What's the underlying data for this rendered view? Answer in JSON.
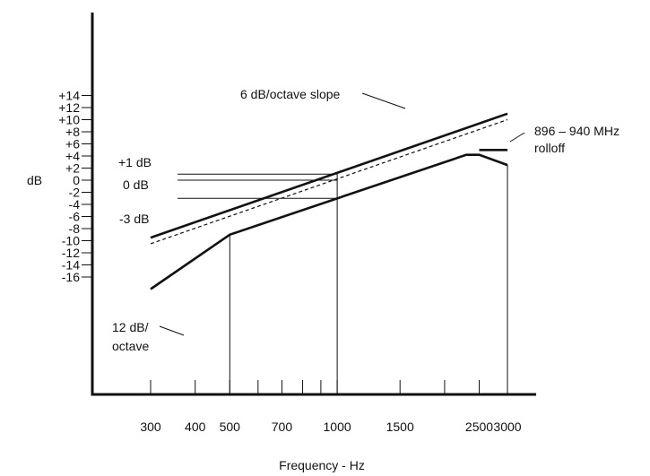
{
  "chart_data": {
    "type": "line",
    "title": "",
    "xlabel": "Frequency - Hz",
    "ylabel": "dB",
    "x_scale": "log",
    "xlim": [
      300,
      3000
    ],
    "ylim": [
      -18,
      14
    ],
    "grid": false,
    "y_ticks": [
      14,
      12,
      10,
      8,
      6,
      4,
      2,
      0,
      -2,
      -4,
      -6,
      -8,
      -10,
      -12,
      -14,
      -16
    ],
    "y_tick_labels": [
      "+14",
      "+12",
      "+10",
      "+8",
      "+6",
      "+4",
      "+2",
      "0",
      "-2",
      "-4",
      "-6",
      "-8",
      "-10",
      "-12",
      "-14",
      "-16"
    ],
    "x_labeled_ticks": [
      300,
      400,
      500,
      700,
      1000,
      1500,
      2500,
      3000
    ],
    "x_tick_labels": [
      "300",
      "400",
      "500",
      "700",
      "1000",
      "1500",
      "2500",
      "3000"
    ],
    "x_minor_ticks": [
      600,
      800,
      900,
      2000
    ],
    "series": [
      {
        "style": "solid",
        "x": [
          300,
          3000
        ],
        "y": [
          -9.5,
          11
        ]
      },
      {
        "style": "dashed",
        "x": [
          300,
          3000
        ],
        "y": [
          -10.5,
          10
        ]
      },
      {
        "style": "solid",
        "x": [
          300,
          500,
          2300,
          2500,
          3000
        ],
        "y": [
          -18,
          -9,
          4.2,
          4.2,
          2.5
        ]
      },
      {
        "style": "solid",
        "x": [
          2500,
          3000
        ],
        "y": [
          5,
          5
        ]
      }
    ],
    "reference_lines": [
      {
        "label": "+1 dB",
        "y": 1,
        "x_end": 1000
      },
      {
        "label": "0 dB",
        "y": 0,
        "x_end": 1000
      },
      {
        "label": "-3 dB",
        "y": -3,
        "x_end": 1000
      }
    ],
    "drop_lines": [
      {
        "x": 500,
        "y": -9
      },
      {
        "x": 1000,
        "y": 1
      },
      {
        "x": 3000,
        "y": 2.5
      }
    ],
    "annotations": [
      {
        "text": "6 dB/octave slope",
        "line": "6dB/octave slope"
      },
      {
        "text": "896 – 940 MHz",
        "line": "896 – 940 MHz"
      },
      {
        "text": "rolloff",
        "line": "rolloff"
      },
      {
        "text": "12 dB/",
        "line": "12 dB/"
      },
      {
        "text": "octave",
        "line": "octave"
      }
    ]
  }
}
